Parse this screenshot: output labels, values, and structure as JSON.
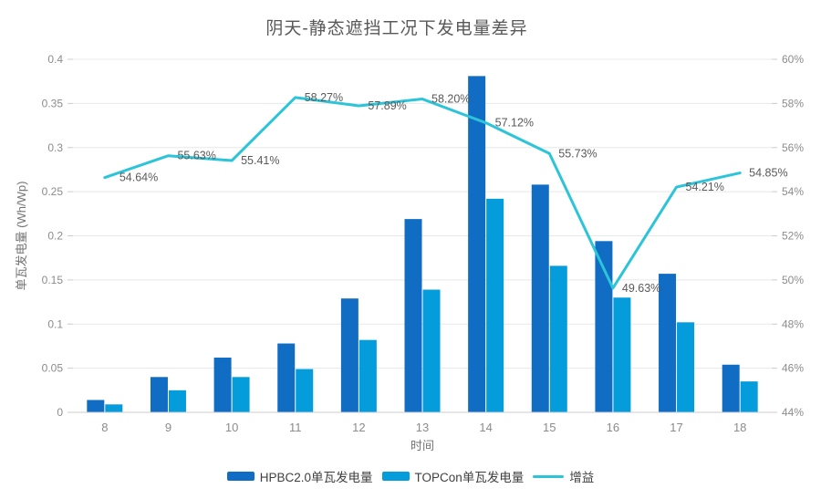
{
  "page": {
    "background": "#ffffff"
  },
  "chart_data": {
    "type": "bar",
    "subtype": "combo-bar-line-dual-axis",
    "title": "阴天-静态遮挡工况下发电量差异",
    "xlabel": "时间",
    "ylabel_left": "单瓦发电量 (Wh/Wp)",
    "categories": [
      "8",
      "9",
      "10",
      "11",
      "12",
      "13",
      "14",
      "15",
      "16",
      "17",
      "18"
    ],
    "axes": {
      "left": {
        "min": 0,
        "max": 0.4,
        "step": 0.05,
        "ticks": [
          "0",
          "0.05",
          "0.1",
          "0.15",
          "0.2",
          "0.25",
          "0.3",
          "0.35",
          "0.4"
        ]
      },
      "right": {
        "min": 44,
        "max": 60,
        "step": 2,
        "ticks": [
          "44%",
          "46%",
          "48%",
          "50%",
          "52%",
          "54%",
          "56%",
          "58%",
          "60%"
        ]
      }
    },
    "grid": true,
    "legend_position": "bottom",
    "series": [
      {
        "name": "HPBC2.0单瓦发电量",
        "type": "bar",
        "axis": "left",
        "color": "#116CC4",
        "values": [
          0.014,
          0.04,
          0.062,
          0.078,
          0.129,
          0.219,
          0.381,
          0.258,
          0.194,
          0.157,
          0.054
        ]
      },
      {
        "name": "TOPCon单瓦发电量",
        "type": "bar",
        "axis": "left",
        "color": "#049CDB",
        "values": [
          0.009,
          0.025,
          0.04,
          0.049,
          0.082,
          0.139,
          0.242,
          0.166,
          0.13,
          0.102,
          0.035
        ]
      },
      {
        "name": "增益",
        "type": "line",
        "axis": "right",
        "color": "#2BC4D9",
        "values": [
          54.64,
          55.63,
          55.41,
          58.27,
          57.89,
          58.2,
          57.12,
          55.73,
          49.63,
          54.21,
          54.85
        ],
        "point_labels": [
          "54.64%",
          "55.63%",
          "55.41%",
          "58.27%",
          "57.89%",
          "58.20%",
          "57.12%",
          "55.73%",
          "49.63%",
          "54.21%",
          "54.85%"
        ]
      }
    ],
    "colors": {
      "grid": "#e8e8e8",
      "axis_line": "#cccccc",
      "tick_text": "#8c8c8c",
      "label_text": "#595959",
      "title_text": "#595959",
      "legend_text": "#404040"
    }
  }
}
